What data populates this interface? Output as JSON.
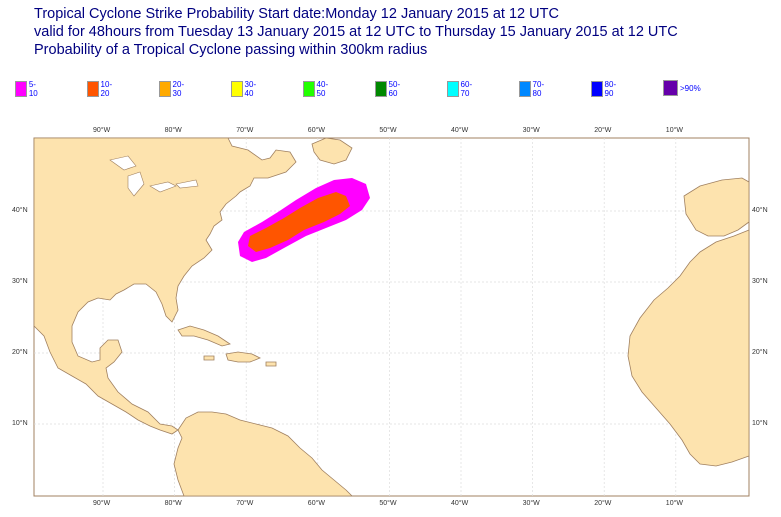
{
  "title": {
    "line1": "Tropical Cyclone Strike Probability Start date:Monday 12 January 2015 at 12 UTC",
    "line2": "valid for 48hours from Tuesday 13 January 2015 at 12 UTC to  Thursday 15 January 2015 at 12 UTC",
    "line3": "Probability of a Tropical Cyclone passing within 300km radius"
  },
  "legend": [
    {
      "label": "5-10",
      "color": "#ff00ff"
    },
    {
      "label": "10-20",
      "color": "#ff5500"
    },
    {
      "label": "20-30",
      "color": "#ffaa00"
    },
    {
      "label": "30-40",
      "color": "#ffff00"
    },
    {
      "label": "40-50",
      "color": "#22ff00"
    },
    {
      "label": "50-60",
      "color": "#008800"
    },
    {
      "label": "60-70",
      "color": "#00ffff"
    },
    {
      "label": "70-80",
      "color": "#0088ff"
    },
    {
      "label": "80-90",
      "color": "#0000ff"
    },
    {
      "label": ">90%",
      "color": "#6600aa"
    }
  ],
  "map": {
    "lon_range": [
      "100°W",
      "0°"
    ],
    "lat_range": [
      "0°",
      "50°N"
    ],
    "lon_ticks": [
      "90°W",
      "80°W",
      "70°W",
      "60°W",
      "50°W",
      "40°W",
      "30°W",
      "20°W",
      "10°W"
    ],
    "lat_ticks": [
      "40°N",
      "30°N",
      "20°N",
      "10°N"
    ],
    "land_color": "#fde3ae",
    "coast_color": "#a08060",
    "probability_areas": [
      {
        "range": "5-10",
        "color": "#ff00ff"
      },
      {
        "range": "10-20",
        "color": "#ff5500"
      }
    ]
  }
}
